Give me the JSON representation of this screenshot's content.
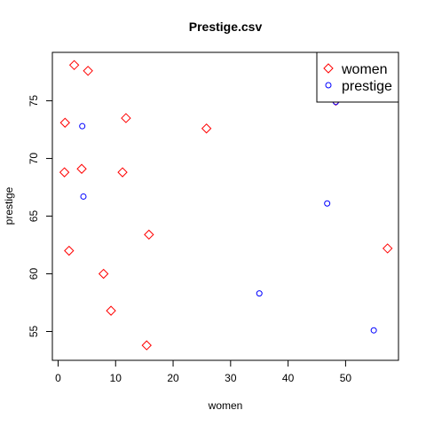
{
  "chart_data": {
    "type": "scatter",
    "title": "Prestige.csv",
    "xlabel": "women",
    "ylabel": "prestige",
    "xlim": [
      -1.0,
      59.2
    ],
    "ylim": [
      52.5,
      79.2
    ],
    "x_ticks": [
      0,
      10,
      20,
      30,
      40,
      50
    ],
    "y_ticks": [
      55,
      60,
      65,
      70,
      75
    ],
    "grid": false,
    "legend_position": "top-right",
    "series": [
      {
        "name": "women",
        "marker": "diamond",
        "color": "#ff0000",
        "points": [
          {
            "x": 2.8,
            "y": 78.1
          },
          {
            "x": 5.2,
            "y": 77.6
          },
          {
            "x": 1.2,
            "y": 73.1
          },
          {
            "x": 11.8,
            "y": 73.5
          },
          {
            "x": 25.8,
            "y": 72.6
          },
          {
            "x": 4.1,
            "y": 69.1
          },
          {
            "x": 1.1,
            "y": 68.8
          },
          {
            "x": 11.2,
            "y": 68.8
          },
          {
            "x": 15.8,
            "y": 63.4
          },
          {
            "x": 1.9,
            "y": 62.0
          },
          {
            "x": 57.3,
            "y": 62.2
          },
          {
            "x": 7.9,
            "y": 60.0
          },
          {
            "x": 9.2,
            "y": 56.8
          },
          {
            "x": 15.4,
            "y": 53.8
          },
          {
            "x": 48.3,
            "y": 75.0
          }
        ]
      },
      {
        "name": "prestige",
        "marker": "circle",
        "color": "#0000ff",
        "points": [
          {
            "x": 4.2,
            "y": 72.8
          },
          {
            "x": 4.4,
            "y": 66.7
          },
          {
            "x": 46.8,
            "y": 66.1
          },
          {
            "x": 35.0,
            "y": 58.3
          },
          {
            "x": 54.9,
            "y": 55.1
          },
          {
            "x": 48.3,
            "y": 74.9
          }
        ]
      }
    ]
  }
}
